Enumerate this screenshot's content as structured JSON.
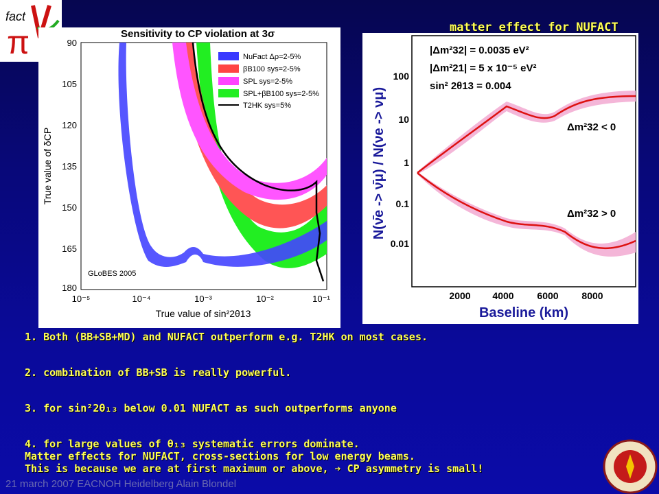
{
  "logo": {
    "text": "fact",
    "symbols": "πν"
  },
  "subtitle": "matter effect for NUFACT",
  "left_chart": {
    "title": "Sensitivity to CP violation at 3σ",
    "ylabel": "True value of δCP",
    "xlabel": "True value of sin²2θ13",
    "yticks": [
      "90",
      "105",
      "120",
      "135",
      "150",
      "165",
      "180"
    ],
    "xticks": [
      "10⁻⁵",
      "10⁻⁴",
      "10⁻³",
      "10⁻²",
      "10⁻¹"
    ],
    "watermark": "GLoBES 2005",
    "legend": [
      {
        "label": "NuFact  Δρ=2-5%",
        "color": "#3a3aff"
      },
      {
        "label": "βB100 sys=2-5%",
        "color": "#ff4444"
      },
      {
        "label": "SPL  sys=2-5%",
        "color": "#ff44ff"
      },
      {
        "label": "SPL+βB100 sys=2-5%",
        "color": "#22ee22"
      },
      {
        "label": "T2HK sys=5%",
        "color": "#000000"
      }
    ]
  },
  "right_chart": {
    "ylabel": "N(ν̄e -> ν̄μ) / N(νe -> νμ)",
    "xlabel": "Baseline   (km)",
    "yticks": [
      "100",
      "10",
      "1",
      "0.1",
      "0.01"
    ],
    "xticks": [
      "2000",
      "4000",
      "6000",
      "8000"
    ],
    "annot": [
      "|Δm²32| = 0.0035 eV²",
      "|Δm²21| = 5 x 10⁻⁵ eV²",
      "sin² 2θ13 = 0.004"
    ],
    "neg_label": "Δm²32 < 0",
    "pos_label": "Δm²32 > 0"
  },
  "bullets": [
    "1.  Both (BB+SB+MD) and NUFACT outperform e.g. T2HK on most cases.",
    "2. combination of BB+SB is really powerful.",
    "3. for sin²2θ₁₃ below 0.01 NUFACT as such outperforms anyone",
    "4. for large values of θ₁₃ systematic errors dominate.",
    "Matter effects for NUFACT, cross-sections for low energy beams.",
    "This is because we are at first maximum or above,  ➔ CP asymmetry is small!"
  ],
  "footer": "21 march 2007 EACNOH Heidelberg Alain Blondel"
}
